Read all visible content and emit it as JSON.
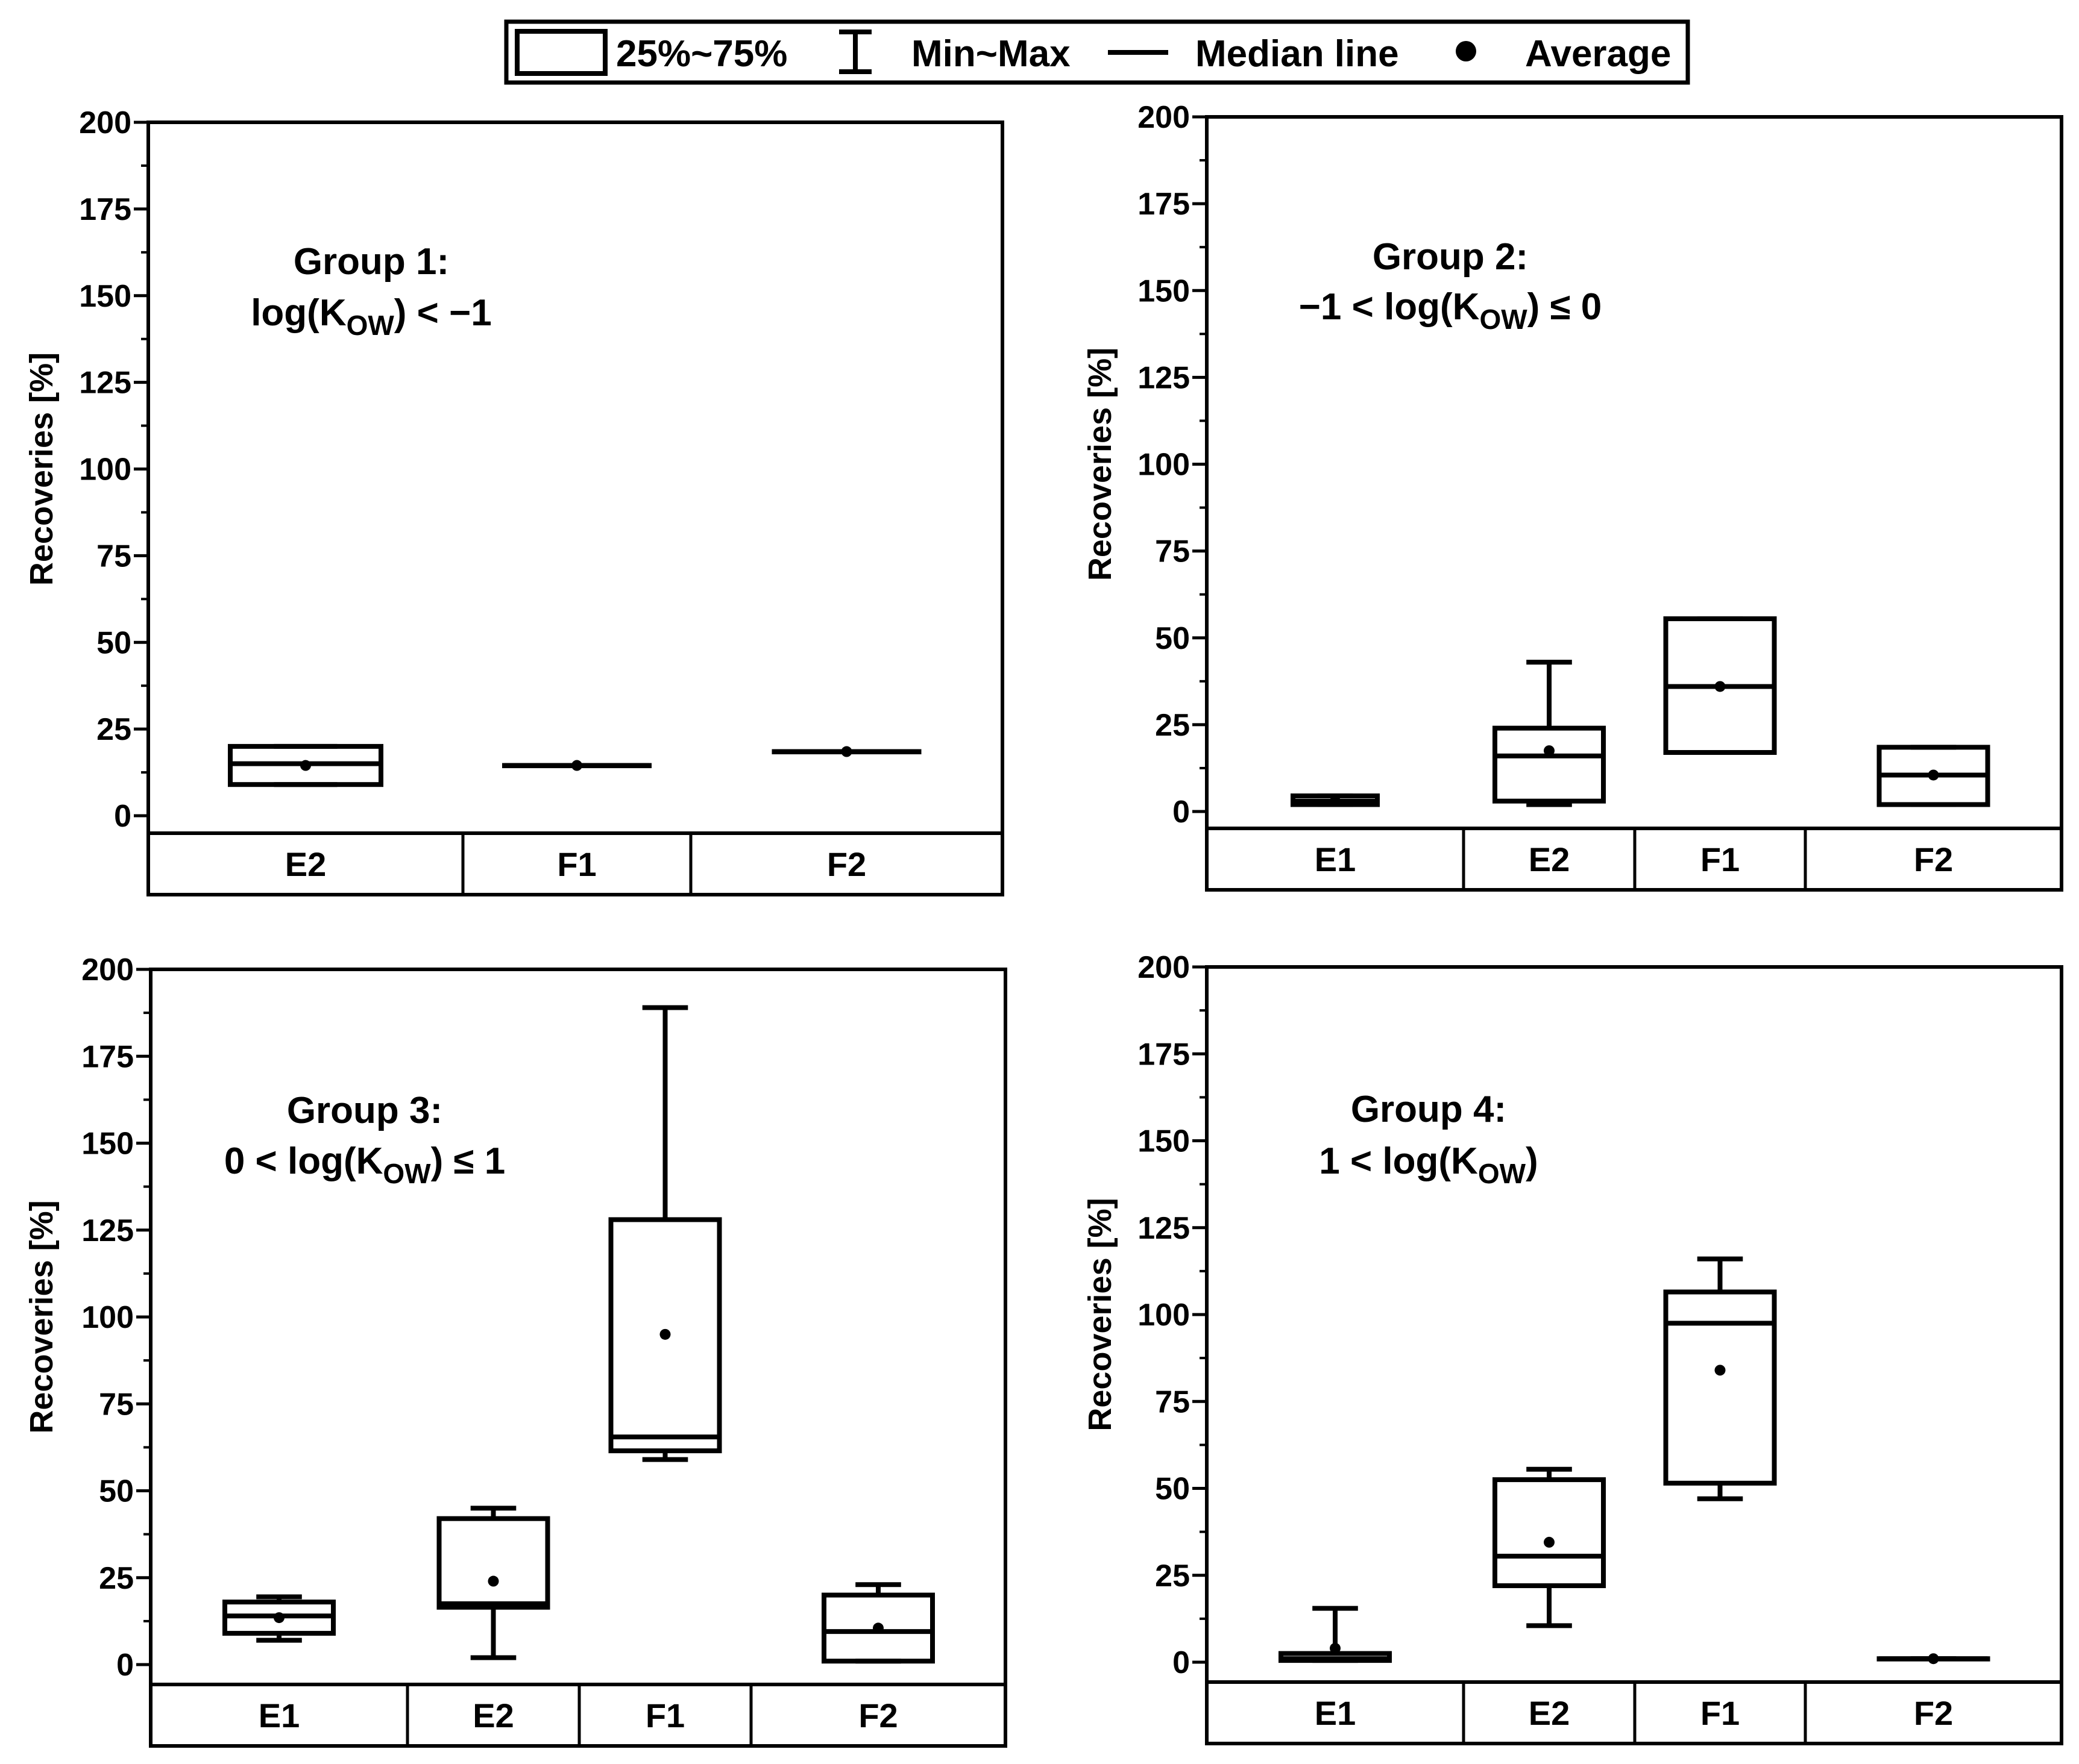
{
  "legend": {
    "box_label": "25%~75%",
    "whisker_label": "Min~Max",
    "median_label": "Median line",
    "mean_label": "Average"
  },
  "chart_data": [
    {
      "type": "box",
      "title": "Group 1:",
      "subtitle": {
        "pre": "log(K",
        "sub": "OW",
        "post": ") < −1"
      },
      "ylabel": "Recoveries  [%]",
      "ylim": [
        -10,
        200
      ],
      "yticks": [
        0,
        25,
        50,
        75,
        100,
        125,
        150,
        175,
        200
      ],
      "categories": [
        "E2",
        "F1",
        "F2"
      ],
      "boxes": [
        {
          "label": "E2",
          "min": 9,
          "q1": 9,
          "median": 15,
          "q3": 20,
          "max": 20,
          "mean": 14.5
        },
        {
          "label": "F1",
          "min": 14.5,
          "q1": 14.5,
          "median": 14.5,
          "q3": 14.5,
          "max": 14.5,
          "mean": 14.5
        },
        {
          "label": "F2",
          "min": 18.5,
          "q1": 18.5,
          "median": 18.5,
          "q3": 18.5,
          "max": 18.5,
          "mean": 18.5
        }
      ]
    },
    {
      "type": "box",
      "title": "Group 2:",
      "subtitle": {
        "pre": "−1 < log(K",
        "sub": "OW",
        "post": ") ≤ 0"
      },
      "ylabel": "Recoveries [%]",
      "ylim": [
        -10,
        200
      ],
      "yticks": [
        0,
        25,
        50,
        75,
        100,
        125,
        150,
        175,
        200
      ],
      "categories": [
        "E1",
        "E2",
        "F1",
        "F2"
      ],
      "boxes": [
        {
          "label": "E1",
          "min": 2,
          "q1": 2,
          "median": 3,
          "q3": 4.5,
          "max": 4.5,
          "mean": 3
        },
        {
          "label": "E2",
          "min": 2,
          "q1": 3,
          "median": 16,
          "q3": 24,
          "max": 43,
          "mean": 17.5
        },
        {
          "label": "F1",
          "min": 17,
          "q1": 17,
          "median": 36,
          "q3": 55.5,
          "max": 55.5,
          "mean": 36
        },
        {
          "label": "F2",
          "min": 2,
          "q1": 2,
          "median": 10.5,
          "q3": 18.5,
          "max": 18.5,
          "mean": 10.5
        }
      ]
    },
    {
      "type": "box",
      "title": "Group 3:",
      "subtitle": {
        "pre": "0 < log(K",
        "sub": "OW",
        "post": ") ≤ 1"
      },
      "ylabel": "Recoveries [%]",
      "ylim": [
        -5,
        200
      ],
      "yticks": [
        0,
        25,
        50,
        75,
        100,
        125,
        150,
        175,
        200
      ],
      "categories": [
        "E1",
        "E2",
        "F1",
        "F2"
      ],
      "boxes": [
        {
          "label": "E1",
          "min": 7,
          "q1": 9,
          "median": 14,
          "q3": 18,
          "max": 19.5,
          "mean": 13.5
        },
        {
          "label": "E2",
          "min": 2,
          "q1": 16.5,
          "median": 17.5,
          "q3": 42,
          "max": 45,
          "mean": 24
        },
        {
          "label": "F1",
          "min": 59,
          "q1": 61.5,
          "median": 65.5,
          "q3": 128,
          "max": 189,
          "mean": 95
        },
        {
          "label": "F2",
          "min": 1,
          "q1": 1,
          "median": 9.5,
          "q3": 20,
          "max": 23,
          "mean": 10.5
        }
      ]
    },
    {
      "type": "box",
      "title": "Group 4:",
      "subtitle": {
        "pre": "1 < log(K",
        "sub": "OW",
        "post": ")"
      },
      "ylabel": "Recoveries [%]",
      "ylim": [
        -5,
        200
      ],
      "yticks": [
        0,
        25,
        50,
        75,
        100,
        125,
        150,
        175,
        200
      ],
      "categories": [
        "E1",
        "E2",
        "F1",
        "F2"
      ],
      "boxes": [
        {
          "label": "E1",
          "min": 0.5,
          "q1": 0.5,
          "median": 1,
          "q3": 2.5,
          "max": 15.5,
          "mean": 4
        },
        {
          "label": "E2",
          "min": 10.5,
          "q1": 22,
          "median": 30.5,
          "q3": 52.5,
          "max": 55.5,
          "mean": 34.5
        },
        {
          "label": "F1",
          "min": 47,
          "q1": 51.5,
          "median": 97.5,
          "q3": 106.5,
          "max": 116,
          "mean": 84
        },
        {
          "label": "F2",
          "min": 1,
          "q1": 1,
          "median": 1,
          "q3": 1,
          "max": 1,
          "mean": 1
        }
      ]
    }
  ]
}
